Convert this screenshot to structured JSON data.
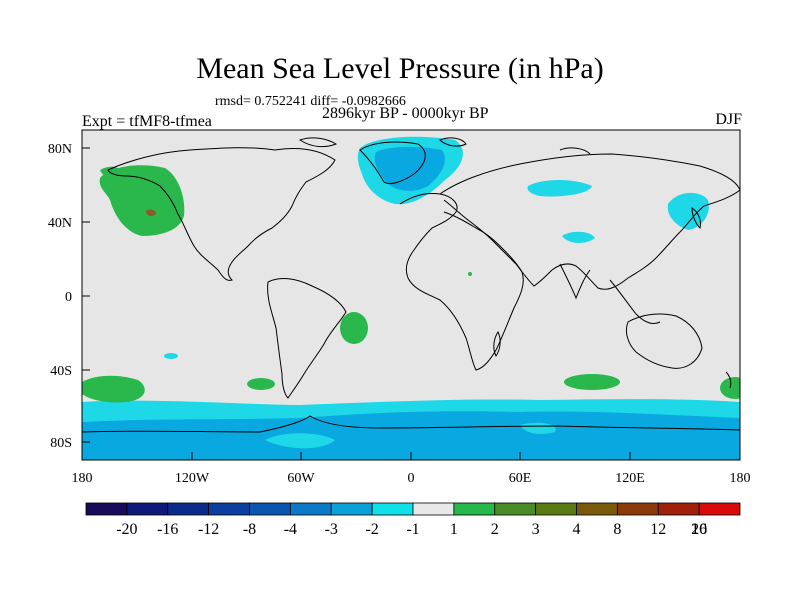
{
  "title": "Mean Sea Level Pressure (in hPa)",
  "stats": "rmsd= 0.752241 diff= -0.0982666",
  "experiment": "Expt = tfMF8-tfmea",
  "period": "2896kyr BP - 0000kyr BP",
  "season": "DJF",
  "lat_labels": [
    "80N",
    "40N",
    "0",
    "40S",
    "80S"
  ],
  "lon_labels": [
    "180",
    "120W",
    "60W",
    "0",
    "60E",
    "120E",
    "180"
  ],
  "colorbar": {
    "labels": [
      "-20",
      "-16",
      "-12",
      "-8",
      "-4",
      "-3",
      "-2",
      "-1",
      "1",
      "2",
      "3",
      "4",
      "8",
      "12",
      "16",
      "20"
    ],
    "colors": [
      "#1a0a5a",
      "#0d1a7a",
      "#0a2b8c",
      "#0a3fa0",
      "#0a55b0",
      "#0a7ac8",
      "#0aa0d8",
      "#10e0e8",
      "#e8e8e8",
      "#26b84a",
      "#4a8c28",
      "#5a7a14",
      "#7a5a0a",
      "#8c3a0a",
      "#a0200a",
      "#d80a0a"
    ]
  },
  "colors": {
    "background": "#e6e6e6",
    "light_cyan": "#1ed8e8",
    "mid_blue": "#0aa8e0",
    "green": "#2ab84c",
    "brown": "#8a5a2a"
  }
}
